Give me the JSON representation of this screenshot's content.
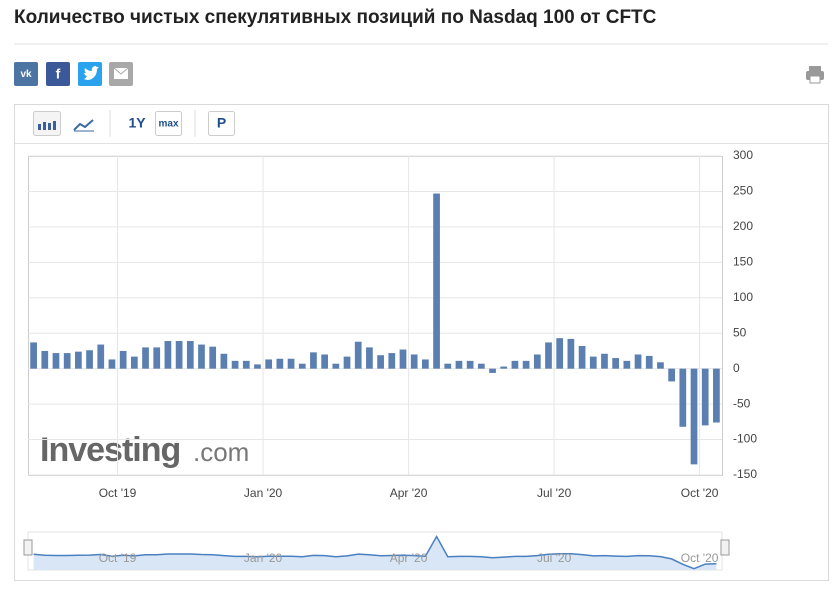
{
  "header": {
    "title": "Количество чистых спекулятивных позиций по Nasdaq 100 от CFTC"
  },
  "toolbar": {
    "buttons": [
      "1Y",
      "max",
      "P"
    ]
  },
  "chart_data": {
    "type": "bar",
    "watermark": {
      "brand": "Investing",
      "suffix": ".com"
    },
    "categories": [
      null,
      null,
      null,
      null,
      null,
      null,
      null,
      null,
      "Oct '19",
      null,
      null,
      null,
      null,
      null,
      null,
      null,
      null,
      null,
      null,
      null,
      null,
      "Jan '20",
      null,
      null,
      null,
      null,
      null,
      null,
      null,
      null,
      null,
      null,
      null,
      null,
      "Apr '20",
      null,
      null,
      null,
      null,
      null,
      null,
      null,
      null,
      null,
      null,
      null,
      null,
      "Jul '20",
      null,
      null,
      null,
      null,
      null,
      null,
      null,
      null,
      null,
      null,
      null,
      null,
      "Oct '20",
      null
    ],
    "values": [
      37,
      25,
      22,
      22,
      24,
      26,
      34,
      13,
      25,
      17,
      30,
      30,
      39,
      39,
      39,
      34,
      31,
      21,
      11,
      11,
      6,
      13,
      14,
      14,
      7,
      23,
      20,
      7,
      17,
      38,
      30,
      19,
      22,
      27,
      20,
      13,
      247,
      7,
      11,
      11,
      7,
      -6,
      3,
      11,
      11,
      20,
      37,
      43,
      42,
      32,
      17,
      21,
      15,
      11,
      20,
      18,
      9,
      -18,
      -82,
      -135,
      -80,
      -76
    ],
    "color": "#5b7fb0",
    "ylim": [
      -150,
      300
    ],
    "yticks": [
      300,
      250,
      200,
      150,
      100,
      50,
      0,
      -50,
      -100,
      -150
    ],
    "grid": true
  }
}
